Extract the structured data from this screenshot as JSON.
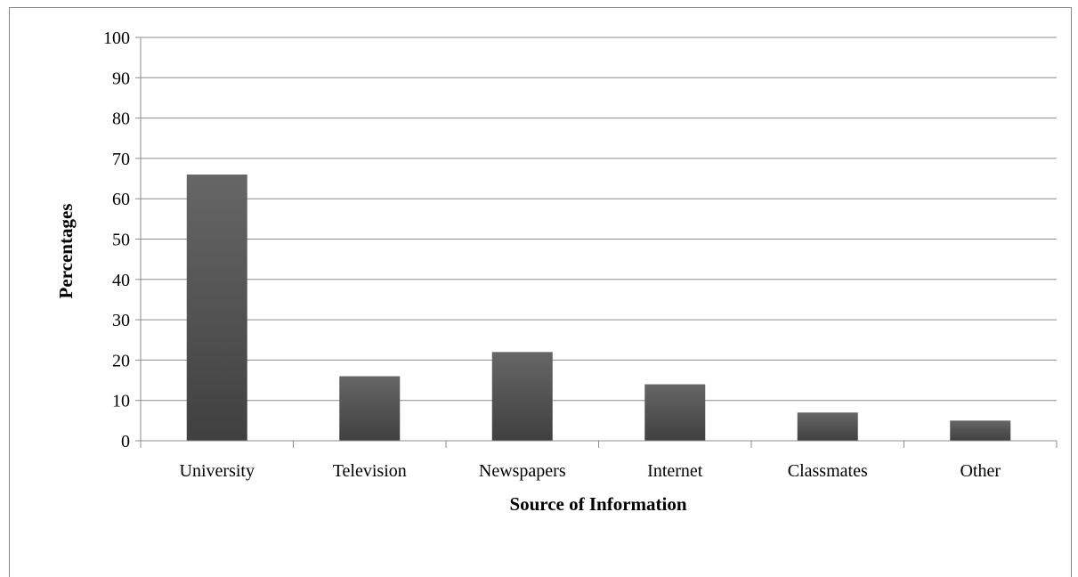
{
  "chart_data": {
    "type": "bar",
    "title": "",
    "xlabel": "Source of Information",
    "ylabel": "Percentages",
    "categories": [
      "University",
      "Television",
      "Newspapers",
      "Internet",
      "Classmates",
      "Other"
    ],
    "values": [
      66,
      16,
      22,
      14,
      7,
      5
    ],
    "ylim": [
      0,
      100
    ],
    "yticks": [
      "0",
      "10",
      "20",
      "30",
      "40",
      "50",
      "60",
      "70",
      "80",
      "90",
      "100"
    ],
    "grid": true,
    "legend": "none",
    "colors": {
      "bar_top": "#666666",
      "bar_bottom": "#404040",
      "grid": "#8c8c8c",
      "axis": "#8c8c8c",
      "frame": "#888888"
    }
  }
}
